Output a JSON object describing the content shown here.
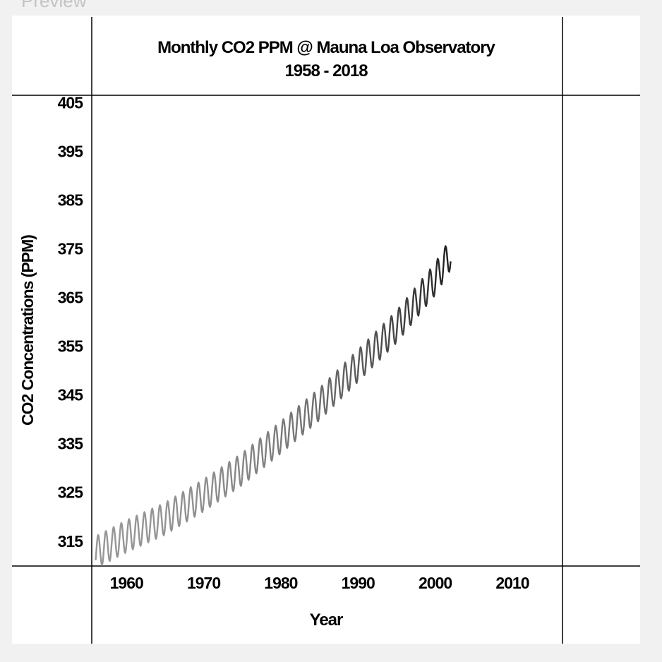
{
  "window": {
    "preview_label": "Preview"
  },
  "chart_data": {
    "type": "line",
    "title": "Monthly CO2 PPM @ Mauna Loa Observatory",
    "subtitle": "1958 - 2018",
    "xlabel": "Year",
    "ylabel": "CO2 Concentrations (PPM)",
    "x_ticks": [
      "1960",
      "1970",
      "1980",
      "1990",
      "2000",
      "2010"
    ],
    "y_ticks": [
      "315",
      "325",
      "335",
      "345",
      "355",
      "365",
      "375",
      "385",
      "395",
      "405"
    ],
    "xlim": [
      1955.5,
      2016.5
    ],
    "ylim": [
      309.9,
      406.5
    ],
    "grid": false,
    "colors": {
      "early": "#8c8c8c",
      "late": "#2a2a2a"
    },
    "series": [
      {
        "trend_points": {
          "x": [
            1956.0,
            1960.0,
            1965.0,
            1970.0,
            1975.0,
            1980.0,
            1985.0,
            1990.0,
            1995.0,
            2000.0,
            2002.0
          ],
          "y": [
            312.7,
            316.0,
            319.6,
            324.4,
            329.8,
            336.3,
            343.1,
            351.0,
            359.0,
            368.8,
            374.0
          ]
        },
        "seasonal_amplitude": 3.3
      }
    ]
  }
}
